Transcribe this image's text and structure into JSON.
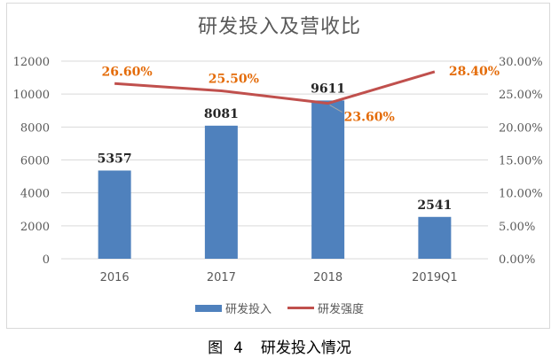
{
  "chart_title": "研发投入及营收比",
  "caption": {
    "label": "图",
    "number": "4",
    "text": "研发投入情况"
  },
  "legend": [
    {
      "label": "研发投入",
      "type": "bar",
      "color": "#4f81bd"
    },
    {
      "label": "研发强度",
      "type": "line",
      "color": "#c0504d"
    }
  ],
  "colors": {
    "bar": "#4f81bd",
    "line": "#c0504d",
    "line_labels": "#e46c0a",
    "bar_labels": "#262626",
    "axis_text": "#595959",
    "grid": "#d9d9d9"
  },
  "chart_data": {
    "type": "bar+line",
    "title": "研发投入及营收比",
    "categories": [
      "2016",
      "2017",
      "2018",
      "2019Q1"
    ],
    "series": [
      {
        "name": "研发投入",
        "type": "bar",
        "axis": "left",
        "values": [
          5357,
          8081,
          9611,
          2541
        ],
        "labels": [
          "5357",
          "8081",
          "9611",
          "2541"
        ]
      },
      {
        "name": "研发强度",
        "type": "line",
        "axis": "right",
        "values": [
          26.6,
          25.5,
          23.6,
          28.4
        ],
        "labels": [
          "26.60%",
          "25.50%",
          "23.60%",
          "28.40%"
        ]
      }
    ],
    "y_left": {
      "min": 0,
      "max": 12000,
      "step": 2000,
      "ticks": [
        "0",
        "2000",
        "4000",
        "6000",
        "8000",
        "10000",
        "12000"
      ]
    },
    "y_right": {
      "min": 0,
      "max": 30,
      "step": 5,
      "ticks": [
        "0.00%",
        "5.00%",
        "10.00%",
        "15.00%",
        "20.00%",
        "25.00%",
        "30.00%"
      ]
    },
    "xlabel": "",
    "ylabel": "",
    "grid": true,
    "legend_position": "bottom"
  }
}
